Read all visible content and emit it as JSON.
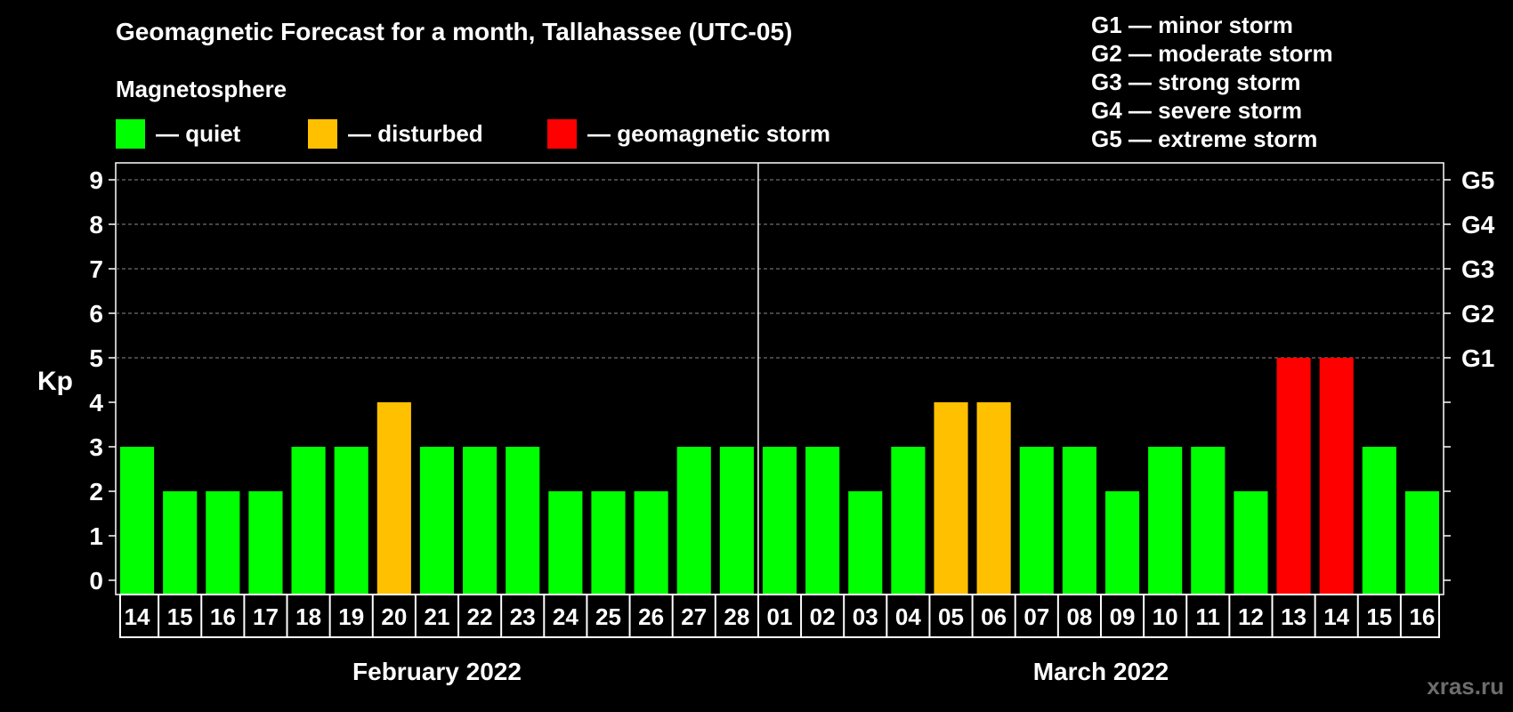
{
  "chart_data": {
    "type": "bar",
    "title": "Geomagnetic Forecast for a month, Tallahassee (UTC-05)",
    "legend_title": "Magnetosphere",
    "legend": [
      {
        "label": "— quiet",
        "color": "#00ff00"
      },
      {
        "label": "— disturbed",
        "color": "#ffc000"
      },
      {
        "label": "— geomagnetic storm",
        "color": "#ff0000"
      }
    ],
    "storm_scale": [
      "G1 — minor storm",
      "G2 — moderate storm",
      "G3 — strong storm",
      "G4 — severe storm",
      "G5 — extreme storm"
    ],
    "ylabel": "Kp",
    "ylim": [
      0,
      9
    ],
    "yticks": [
      "0",
      "1",
      "2",
      "3",
      "4",
      "5",
      "6",
      "7",
      "8",
      "9"
    ],
    "right_ticks": [
      {
        "value": 5,
        "label": "G1"
      },
      {
        "value": 6,
        "label": "G2"
      },
      {
        "value": 7,
        "label": "G3"
      },
      {
        "value": 8,
        "label": "G4"
      },
      {
        "value": 9,
        "label": "G5"
      }
    ],
    "grid": "dashed at 5–9",
    "categories": [
      "14",
      "15",
      "16",
      "17",
      "18",
      "19",
      "20",
      "21",
      "22",
      "23",
      "24",
      "25",
      "26",
      "27",
      "28",
      "01",
      "02",
      "03",
      "04",
      "05",
      "06",
      "07",
      "08",
      "09",
      "10",
      "11",
      "12",
      "13",
      "14",
      "15",
      "16"
    ],
    "values": [
      3,
      2,
      2,
      2,
      3,
      3,
      4,
      3,
      3,
      3,
      2,
      2,
      2,
      3,
      3,
      3,
      3,
      2,
      3,
      4,
      4,
      3,
      3,
      2,
      3,
      3,
      2,
      5,
      5,
      3,
      2
    ],
    "month_groups": [
      {
        "label": "February 2022",
        "count": 15
      },
      {
        "label": "March 2022",
        "count": 16
      }
    ],
    "colors": {
      "quiet": "#00ff00",
      "disturbed": "#ffc000",
      "storm": "#ff0000"
    }
  },
  "watermark": "xras.ru"
}
